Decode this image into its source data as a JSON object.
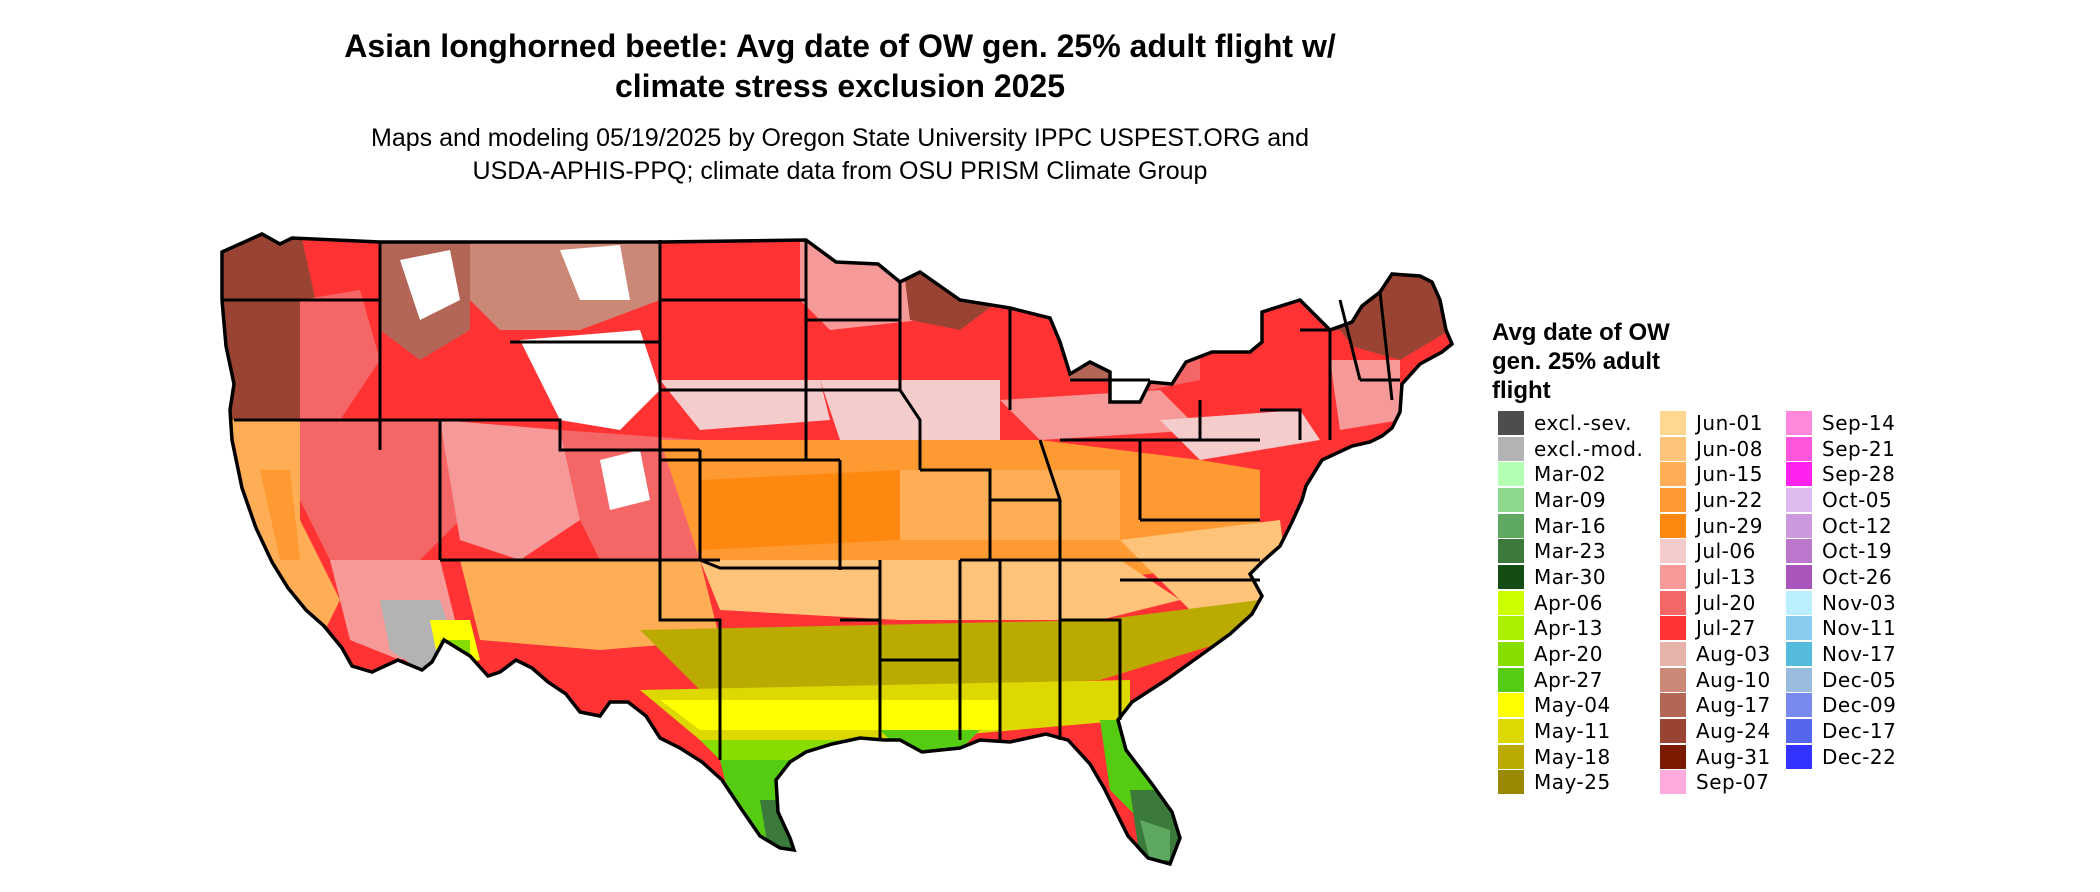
{
  "title_line1": "Asian longhorned beetle: Avg date of OW gen. 25% adult flight w/",
  "title_line2": "climate stress exclusion 2025",
  "subtitle_line1": "Maps and modeling 05/19/2025 by Oregon State University IPPC USPEST.ORG and",
  "subtitle_line2": "USDA-APHIS-PPQ; climate data from OSU PRISM Climate Group",
  "legend": {
    "title_lines": [
      "Avg date of OW",
      "gen. 25% adult",
      "flight"
    ],
    "columns": [
      [
        {
          "label": "excl.-sev.",
          "color": "#4d4d4d"
        },
        {
          "label": "excl.-mod.",
          "color": "#b3b3b3"
        },
        {
          "label": "Mar-02",
          "color": "#b3ffb3"
        },
        {
          "label": "Mar-09",
          "color": "#8ed88e"
        },
        {
          "label": "Mar-16",
          "color": "#5fa85f"
        },
        {
          "label": "Mar-23",
          "color": "#3b7a3b"
        },
        {
          "label": "Mar-30",
          "color": "#134d13"
        },
        {
          "label": "Apr-06",
          "color": "#ccff00"
        },
        {
          "label": "Apr-13",
          "color": "#aaee00"
        },
        {
          "label": "Apr-20",
          "color": "#88dd00"
        },
        {
          "label": "Apr-27",
          "color": "#55cc11"
        },
        {
          "label": "May-04",
          "color": "#ffff00"
        },
        {
          "label": "May-11",
          "color": "#ddd800"
        },
        {
          "label": "May-18",
          "color": "#bbaa00"
        },
        {
          "label": "May-25",
          "color": "#998800"
        }
      ],
      [
        {
          "label": "Jun-01",
          "color": "#ffd78e"
        },
        {
          "label": "Jun-08",
          "color": "#ffc47a"
        },
        {
          "label": "Jun-15",
          "color": "#ffae55"
        },
        {
          "label": "Jun-22",
          "color": "#ff9a33"
        },
        {
          "label": "Jun-29",
          "color": "#ff8811"
        },
        {
          "label": "Jul-06",
          "color": "#f5cccc"
        },
        {
          "label": "Jul-13",
          "color": "#f59999"
        },
        {
          "label": "Jul-20",
          "color": "#f56666"
        },
        {
          "label": "Jul-27",
          "color": "#ff3333"
        },
        {
          "label": "Aug-03",
          "color": "#e6b3aa"
        },
        {
          "label": "Aug-10",
          "color": "#cc8877"
        },
        {
          "label": "Aug-17",
          "color": "#b36655"
        },
        {
          "label": "Aug-24",
          "color": "#994433"
        },
        {
          "label": "Aug-31",
          "color": "#7a1a00"
        },
        {
          "label": "Sep-07",
          "color": "#ffaadd"
        }
      ],
      [
        {
          "label": "Sep-14",
          "color": "#ff88dd"
        },
        {
          "label": "Sep-21",
          "color": "#ff55dd"
        },
        {
          "label": "Sep-28",
          "color": "#ff22ee"
        },
        {
          "label": "Oct-05",
          "color": "#ddbbee"
        },
        {
          "label": "Oct-12",
          "color": "#cc99dd"
        },
        {
          "label": "Oct-19",
          "color": "#bb77cc"
        },
        {
          "label": "Oct-26",
          "color": "#aa55bb"
        },
        {
          "label": "Nov-03",
          "color": "#bbeeff"
        },
        {
          "label": "Nov-11",
          "color": "#88ccee"
        },
        {
          "label": "Nov-17",
          "color": "#55bbdd"
        },
        {
          "label": "Dec-05",
          "color": "#99bbdd"
        },
        {
          "label": "Dec-09",
          "color": "#7788ee"
        },
        {
          "label": "Dec-17",
          "color": "#5566ee"
        },
        {
          "label": "Dec-22",
          "color": "#3333ff"
        }
      ]
    ]
  }
}
